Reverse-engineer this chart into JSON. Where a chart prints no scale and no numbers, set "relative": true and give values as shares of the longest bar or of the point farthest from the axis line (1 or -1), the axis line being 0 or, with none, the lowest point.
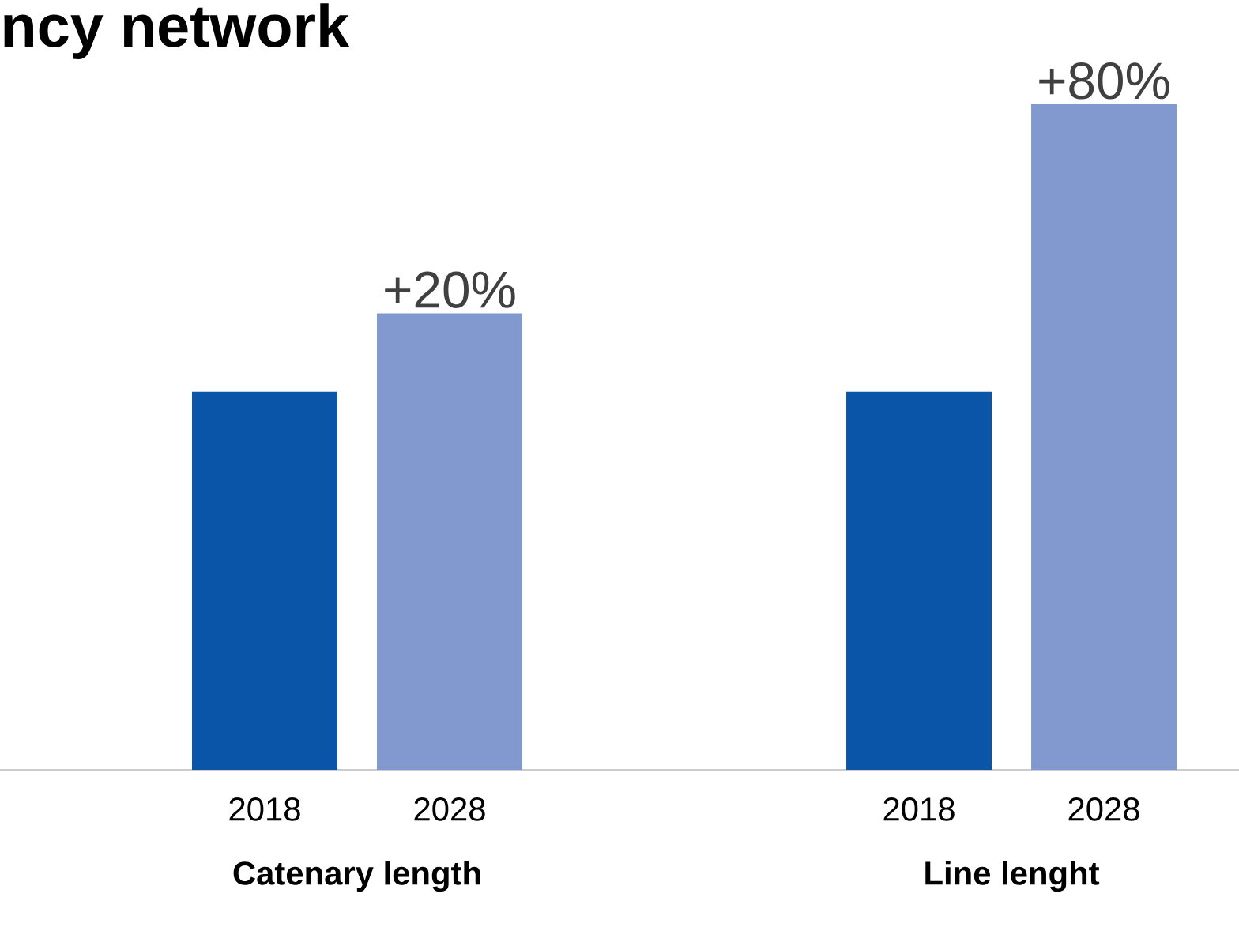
{
  "chart_data": {
    "type": "bar",
    "title": "ncy network",
    "relative": true,
    "categories": [
      "Catenary length",
      "Line lenght"
    ],
    "series": [
      {
        "name": "2018",
        "color": "#0a55a8",
        "values": [
          0.568,
          0.568
        ]
      },
      {
        "name": "2028",
        "color": "#8299cf",
        "values": [
          0.686,
          1
        ]
      }
    ],
    "annotations": [
      "+20%",
      "+80%"
    ]
  }
}
